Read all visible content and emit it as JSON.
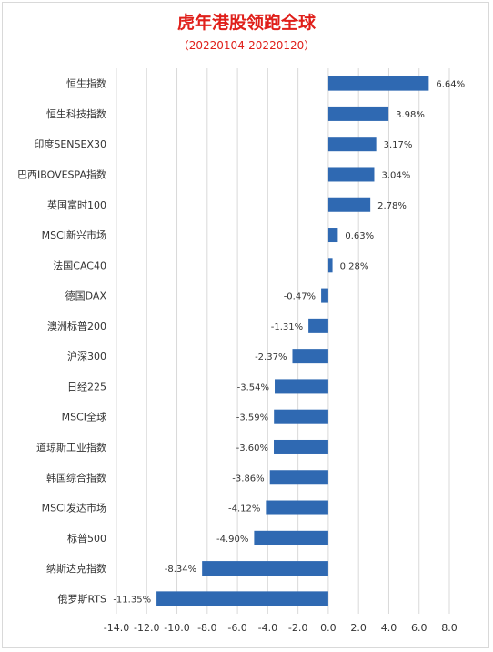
{
  "header": {
    "title": "虎年港股领跑全球",
    "subtitle": "（20220104-20220120）"
  },
  "colors": {
    "bar": "#2f69b2",
    "grid": "#d9d9d9",
    "title": "#e0201b"
  },
  "chart_data": {
    "type": "bar",
    "orientation": "horizontal",
    "title": "虎年港股领跑全球",
    "subtitle": "（20220104-20220120）",
    "categories": [
      "恒生指数",
      "恒生科技指数",
      "印度SENSEX30",
      "巴西IBOVESPA指数",
      "英国富时100",
      "MSCI新兴市场",
      "法国CAC40",
      "德国DAX",
      "澳洲标普200",
      "沪深300",
      "日经225",
      "MSCI全球",
      "道琼斯工业指数",
      "韩国综合指数",
      "MSCI发达市场",
      "标普500",
      "纳斯达克指数",
      "俄罗斯RTS"
    ],
    "values": [
      6.64,
      3.98,
      3.17,
      3.04,
      2.78,
      0.63,
      0.28,
      -0.47,
      -1.31,
      -2.37,
      -3.54,
      -3.59,
      -3.6,
      -3.86,
      -4.12,
      -4.9,
      -8.34,
      -11.35
    ],
    "labels": [
      "6.64%",
      "3.98%",
      "3.17%",
      "3.04%",
      "2.78%",
      "0.63%",
      "0.28%",
      "-0.47%",
      "-1.31%",
      "-2.37%",
      "-3.54%",
      "-3.59%",
      "-3.60%",
      "-3.86%",
      "-4.12%",
      "-4.90%",
      "-8.34%",
      "-11.35%"
    ],
    "xlim": [
      -14,
      8
    ],
    "xticks": [
      "-14.0",
      "-12.0",
      "-10.0",
      "-8.0",
      "-6.0",
      "-4.0",
      "-2.0",
      "0.0",
      "2.0",
      "4.0",
      "6.0",
      "8.0"
    ],
    "grid": "vertical",
    "legend": "none"
  }
}
